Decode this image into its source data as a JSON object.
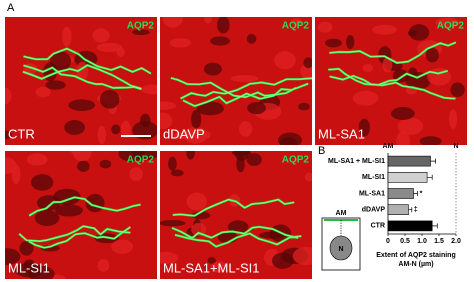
{
  "panel_labels": [
    "A",
    "B"
  ],
  "images": [
    {
      "label": "CTR",
      "stain": "AQP2"
    },
    {
      "label": "dDAVP",
      "stain": "AQP2"
    },
    {
      "label": "ML-SA1",
      "stain": "AQP2"
    },
    {
      "label": "ML-SI1",
      "stain": "AQP2"
    },
    {
      "label": "ML-SA1+ML-SI1",
      "stain": "AQP2"
    }
  ],
  "diagram": {
    "apical_label": "AM",
    "nucleus_label": "N"
  },
  "chart_data": {
    "type": "hbar",
    "categories": [
      "ML-SA1 + ML-SI1",
      "ML-SI1",
      "ML-SA1",
      "dDAVP",
      "CTR"
    ],
    "values": [
      1.25,
      1.15,
      0.75,
      0.6,
      1.3
    ],
    "errors": [
      0.15,
      0.15,
      0.12,
      0.1,
      0.15
    ],
    "colors": [
      "#666666",
      "#d0d0d0",
      "#8a8a8a",
      "#b0b0b0",
      "#000000"
    ],
    "annotations": [
      null,
      null,
      "*",
      "‡",
      null
    ],
    "axis_end_labels": {
      "left": "AM",
      "right": "N"
    },
    "xlabel": [
      "Extent of AQP2 staining",
      "AM-N (µm)"
    ],
    "xlim": [
      0,
      2
    ],
    "xticks": [
      0,
      0.5,
      {
        "value": 1,
        "label": "1.0"
      },
      1.5,
      {
        "value": 2,
        "label": "2.0"
      }
    ]
  }
}
